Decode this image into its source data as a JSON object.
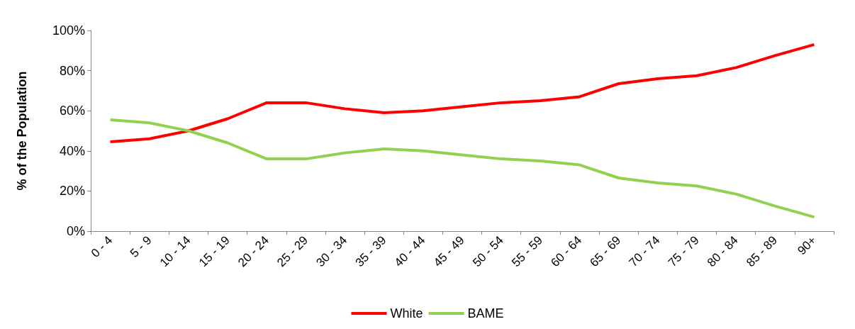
{
  "chart_data": {
    "type": "line",
    "ylabel": "% of the Population",
    "categories": [
      "0 - 4",
      "5 - 9",
      "10 - 14",
      "15 - 19",
      "20 - 24",
      "25 - 29",
      "30 - 34",
      "35 - 39",
      "40 - 44",
      "45 - 49",
      "50 - 54",
      "55 - 59",
      "60 - 64",
      "65 - 69",
      "70 - 74",
      "75 - 79",
      "80 - 84",
      "85 - 89",
      "90+"
    ],
    "series": [
      {
        "name": "White",
        "color": "#ff0000",
        "values": [
          44.5,
          46,
          50,
          56,
          64,
          64,
          61,
          59,
          60,
          62,
          64,
          65,
          67,
          73.5,
          76,
          77.5,
          81.5,
          87.5,
          93
        ]
      },
      {
        "name": "BAME",
        "color": "#92d050",
        "values": [
          55.5,
          54,
          50,
          44,
          36,
          36,
          39,
          41,
          40,
          38,
          36,
          35,
          33,
          26.5,
          24,
          22.5,
          18.5,
          12.5,
          7
        ]
      }
    ],
    "ylim": [
      0,
      100
    ],
    "yticks": [
      {
        "value": 0,
        "label": "0%"
      },
      {
        "value": 20,
        "label": "20%"
      },
      {
        "value": 40,
        "label": "40%"
      },
      {
        "value": 60,
        "label": "60%"
      },
      {
        "value": 80,
        "label": "80%"
      },
      {
        "value": 100,
        "label": "100%"
      }
    ],
    "grid": false,
    "legend": "bottom",
    "marker": "none",
    "line_style": "solid"
  }
}
